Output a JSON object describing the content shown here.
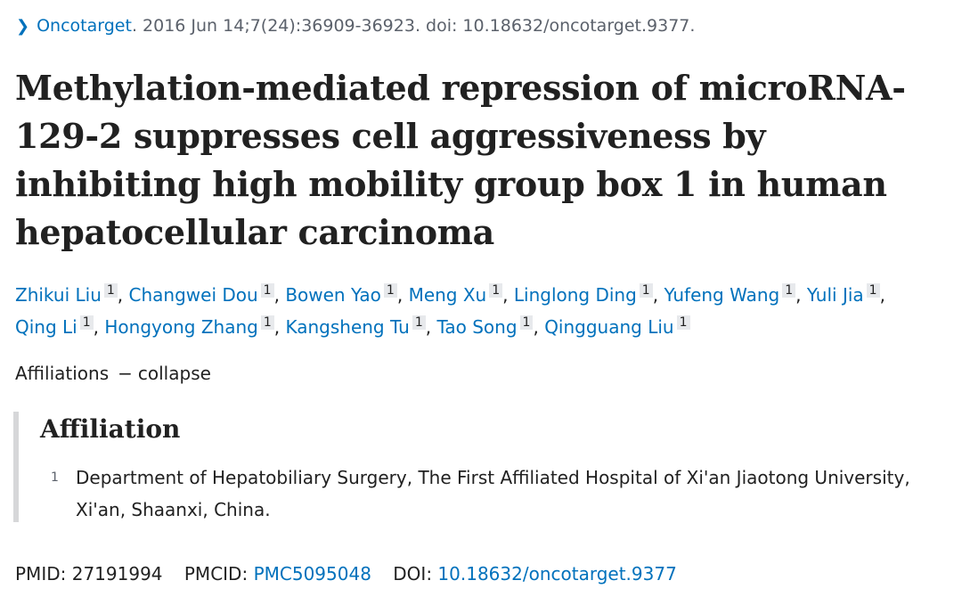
{
  "citation": {
    "journal": "Oncotarget",
    "details": ". 2016 Jun 14;7(24):36909-36923. doi: 10.18632/oncotarget.9377."
  },
  "title": "Methylation-mediated repression of microRNA-129-2 suppresses cell aggressiveness by inhibiting high mobility group box 1 in human hepatocellular carcinoma",
  "authors": [
    {
      "name": "Zhikui Liu",
      "aff": "1"
    },
    {
      "name": "Changwei Dou",
      "aff": "1"
    },
    {
      "name": "Bowen Yao",
      "aff": "1"
    },
    {
      "name": "Meng Xu",
      "aff": "1"
    },
    {
      "name": "Linglong Ding",
      "aff": "1"
    },
    {
      "name": "Yufeng Wang",
      "aff": "1"
    },
    {
      "name": "Yuli Jia",
      "aff": "1"
    },
    {
      "name": "Qing Li",
      "aff": "1"
    },
    {
      "name": "Hongyong Zhang",
      "aff": "1"
    },
    {
      "name": "Kangsheng Tu",
      "aff": "1"
    },
    {
      "name": "Tao Song",
      "aff": "1"
    },
    {
      "name": "Qingguang Liu",
      "aff": "1"
    }
  ],
  "affiliations_toggle": {
    "label": "Affiliations",
    "dash": "−",
    "action": "collapse"
  },
  "affiliation": {
    "heading": "Affiliation",
    "items": [
      {
        "num": "1",
        "text": "Department of Hepatobiliary Surgery, The First Affiliated Hospital of Xi'an Jiaotong University, Xi'an, Shaanxi, China."
      }
    ]
  },
  "identifiers": {
    "pmid_label": "PMID:",
    "pmid": "27191994",
    "pmcid_label": "PMCID:",
    "pmcid": "PMC5095048",
    "doi_label": "DOI:",
    "doi": "10.18632/oncotarget.9377"
  }
}
